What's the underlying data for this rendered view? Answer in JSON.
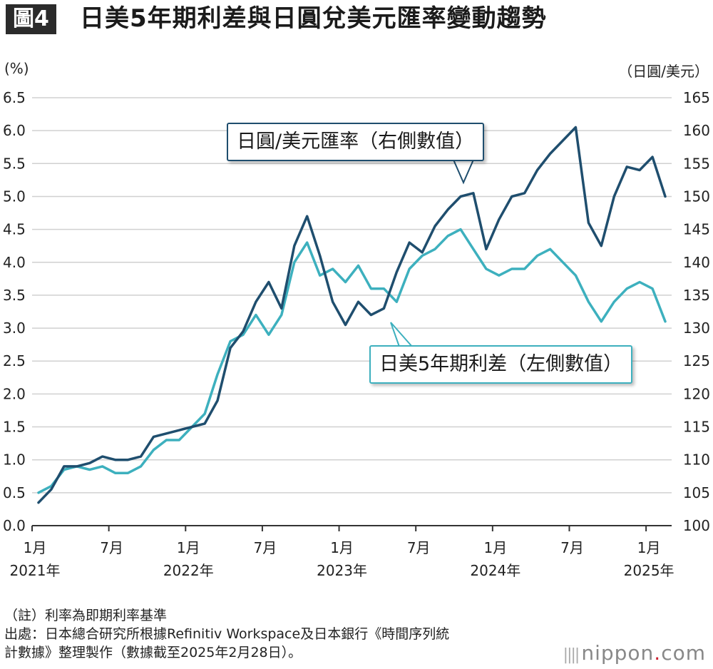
{
  "header": {
    "badge": "圖4",
    "title": "日美5年期利差與日圓兌美元匯率變動趨勢"
  },
  "units": {
    "left": "(%)",
    "right": "（日圓/美元）"
  },
  "callouts": {
    "fx": "日圓/美元匯率（右側數值）",
    "spread": "日美5年期利差（左側數值）"
  },
  "notes": {
    "line1": "（註）利率為即期利率基準",
    "line2": "出處：日本總合研究所根據Refinitiv Workspace及日本銀行《時間序列統",
    "line3": "計數據》整理製作（數據截至2025年2月28日）。"
  },
  "brand": {
    "name": "nippon",
    "dot": ".",
    "tld": "com"
  },
  "colors": {
    "fx": "#1f4e6e",
    "spread": "#3db0be",
    "grid": "#d0d0d0",
    "axis": "#333333"
  },
  "chart_data": {
    "type": "line",
    "x_ticks": [
      {
        "month": "1月",
        "year": "2021年"
      },
      {
        "month": "7月",
        "year": ""
      },
      {
        "month": "1月",
        "year": "2022年"
      },
      {
        "month": "7月",
        "year": ""
      },
      {
        "month": "1月",
        "year": "2023年"
      },
      {
        "month": "7月",
        "year": ""
      },
      {
        "month": "1月",
        "year": "2024年"
      },
      {
        "month": "7月",
        "year": ""
      },
      {
        "month": "1月",
        "year": "2025年"
      }
    ],
    "y_left": {
      "label": "(%)",
      "min": 0.0,
      "max": 6.5,
      "ticks": [
        "0.0",
        "0.5",
        "1.0",
        "1.5",
        "2.0",
        "2.5",
        "3.0",
        "3.5",
        "4.0",
        "4.5",
        "5.0",
        "5.5",
        "6.0",
        "6.5"
      ]
    },
    "y_right": {
      "label": "（日圓/美元）",
      "min": 100,
      "max": 165,
      "ticks": [
        "100",
        "105",
        "110",
        "115",
        "120",
        "125",
        "130",
        "135",
        "140",
        "145",
        "150",
        "155",
        "160",
        "165"
      ]
    },
    "x_range": [
      "2021-01",
      "2025-02"
    ],
    "grid": true,
    "series": [
      {
        "name": "日圓/美元匯率（右側數值）",
        "axis": "right",
        "x": [
          "2021-01",
          "2021-02",
          "2021-03",
          "2021-04",
          "2021-05",
          "2021-06",
          "2021-07",
          "2021-08",
          "2021-09",
          "2021-10",
          "2021-11",
          "2021-12",
          "2022-01",
          "2022-02",
          "2022-03",
          "2022-04",
          "2022-05",
          "2022-06",
          "2022-07",
          "2022-08",
          "2022-09",
          "2022-10",
          "2022-11",
          "2022-12",
          "2023-01",
          "2023-02",
          "2023-03",
          "2023-04",
          "2023-05",
          "2023-06",
          "2023-07",
          "2023-08",
          "2023-09",
          "2023-10",
          "2023-11",
          "2023-12",
          "2024-01",
          "2024-02",
          "2024-03",
          "2024-04",
          "2024-05",
          "2024-06",
          "2024-07",
          "2024-08",
          "2024-09",
          "2024-10",
          "2024-11",
          "2024-12",
          "2025-01",
          "2025-02"
        ],
        "values": [
          103.5,
          105.5,
          109.0,
          109.0,
          109.5,
          110.5,
          110.0,
          110.0,
          110.5,
          113.5,
          114.0,
          114.5,
          115.0,
          115.5,
          119.0,
          127.0,
          129.5,
          134.0,
          137.0,
          133.0,
          142.5,
          147.0,
          141.0,
          134.0,
          130.5,
          134.0,
          132.0,
          133.0,
          138.5,
          143.0,
          141.5,
          145.5,
          148.0,
          150.0,
          150.5,
          142.0,
          146.5,
          150.0,
          150.5,
          154.0,
          156.5,
          158.5,
          160.5,
          146.0,
          142.5,
          150.0,
          154.5,
          154.0,
          156.0,
          150.0
        ]
      },
      {
        "name": "日美5年期利差（左側數值）",
        "axis": "left",
        "x": [
          "2021-01",
          "2021-02",
          "2021-03",
          "2021-04",
          "2021-05",
          "2021-06",
          "2021-07",
          "2021-08",
          "2021-09",
          "2021-10",
          "2021-11",
          "2021-12",
          "2022-01",
          "2022-02",
          "2022-03",
          "2022-04",
          "2022-05",
          "2022-06",
          "2022-07",
          "2022-08",
          "2022-09",
          "2022-10",
          "2022-11",
          "2022-12",
          "2023-01",
          "2023-02",
          "2023-03",
          "2023-04",
          "2023-05",
          "2023-06",
          "2023-07",
          "2023-08",
          "2023-09",
          "2023-10",
          "2023-11",
          "2023-12",
          "2024-01",
          "2024-02",
          "2024-03",
          "2024-04",
          "2024-05",
          "2024-06",
          "2024-07",
          "2024-08",
          "2024-09",
          "2024-10",
          "2024-11",
          "2024-12",
          "2025-01",
          "2025-02"
        ],
        "values": [
          0.5,
          0.6,
          0.85,
          0.9,
          0.85,
          0.9,
          0.8,
          0.8,
          0.9,
          1.15,
          1.3,
          1.3,
          1.5,
          1.7,
          2.3,
          2.8,
          2.9,
          3.2,
          2.9,
          3.2,
          4.0,
          4.3,
          3.8,
          3.9,
          3.7,
          3.95,
          3.6,
          3.6,
          3.4,
          3.9,
          4.1,
          4.2,
          4.4,
          4.5,
          4.2,
          3.9,
          3.8,
          3.9,
          3.9,
          4.1,
          4.2,
          4.0,
          3.8,
          3.4,
          3.1,
          3.4,
          3.6,
          3.7,
          3.6,
          3.1
        ]
      }
    ]
  }
}
